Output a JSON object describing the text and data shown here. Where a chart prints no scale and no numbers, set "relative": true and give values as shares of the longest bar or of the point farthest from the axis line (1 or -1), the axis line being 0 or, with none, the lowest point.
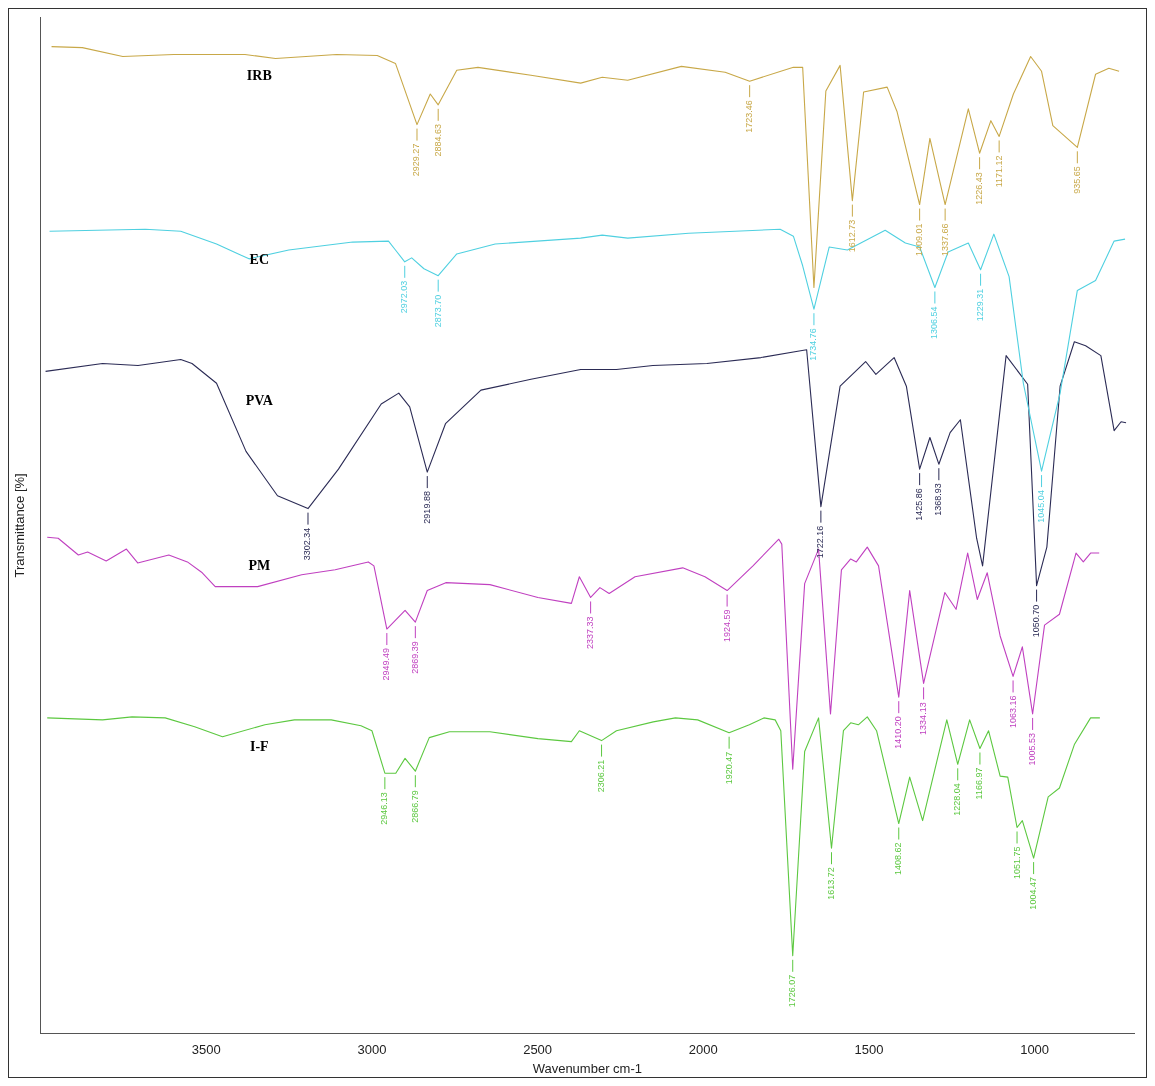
{
  "chart_data": {
    "type": "line",
    "relative": true,
    "xlabel": "Wavenumber cm-1",
    "ylabel": "Transmittance [%]",
    "xlim": [
      4000,
      700
    ],
    "xticks": [
      3500,
      3000,
      2500,
      2000,
      1500,
      1000
    ],
    "grid": false,
    "legend": false,
    "marker": "none",
    "line_style": "solid",
    "series": [
      {
        "name": "IRB",
        "color": "#c8a848",
        "x": [
          3967,
          3874,
          3752,
          3598,
          3383,
          3291,
          3107,
          2984,
          2929,
          2864,
          2824,
          2800,
          2744,
          2680,
          2520,
          2370,
          2305,
          2228,
          2066,
          1934,
          1860,
          1728,
          1700,
          1666,
          1630,
          1587,
          1550,
          1516,
          1445,
          1415,
          1347,
          1316,
          1270,
          1200,
          1166,
          1132,
          1107,
          1064,
          1012,
          979,
          945,
          871,
          816,
          776,
          745
        ],
        "values": [
          1.0,
          0.999,
          0.99,
          0.992,
          0.992,
          0.988,
          0.992,
          0.991,
          0.983,
          0.921,
          0.952,
          0.941,
          0.976,
          0.979,
          0.971,
          0.963,
          0.969,
          0.966,
          0.98,
          0.974,
          0.965,
          0.979,
          0.979,
          0.756,
          0.955,
          0.981,
          0.844,
          0.954,
          0.959,
          0.934,
          0.84,
          0.907,
          0.84,
          0.937,
          0.892,
          0.925,
          0.909,
          0.952,
          0.99,
          0.975,
          0.92,
          0.898,
          0.972,
          0.978,
          0.975
        ]
      },
      {
        "name": "EC",
        "color": "#4fd0e0",
        "x": [
          3973,
          3684,
          3577,
          3469,
          3371,
          3251,
          3058,
          2950,
          2929,
          2901,
          2880,
          2843,
          2800,
          2744,
          2628,
          2370,
          2305,
          2228,
          2044,
          1768,
          1728,
          1700,
          1666,
          1620,
          1565,
          1451,
          1390,
          1347,
          1301,
          1261,
          1200,
          1163,
          1123,
          1077,
          1034,
          979,
          923,
          871,
          816,
          760,
          727
        ],
        "values": [
          0.813,
          0.815,
          0.813,
          0.8,
          0.785,
          0.794,
          0.802,
          0.803,
          0.794,
          0.782,
          0.786,
          0.775,
          0.768,
          0.79,
          0.8,
          0.806,
          0.809,
          0.806,
          0.811,
          0.815,
          0.808,
          0.778,
          0.734,
          0.797,
          0.794,
          0.814,
          0.801,
          0.797,
          0.756,
          0.792,
          0.801,
          0.774,
          0.81,
          0.767,
          0.659,
          0.57,
          0.649,
          0.753,
          0.763,
          0.803,
          0.805
        ]
      },
      {
        "name": "PVA",
        "color": "#2b2b55",
        "x": [
          3985,
          3813,
          3706,
          3577,
          3543,
          3469,
          3380,
          3285,
          3193,
          3101,
          2972,
          2919,
          2886,
          2833,
          2778,
          2671,
          2520,
          2370,
          2262,
          2152,
          1989,
          1826,
          1706,
          1688,
          1645,
          1587,
          1510,
          1479,
          1424,
          1387,
          1347,
          1316,
          1289,
          1255,
          1224,
          1175,
          1157,
          1086,
          1021,
          994,
          963,
          923,
          880,
          846,
          800,
          760,
          739,
          724
        ],
        "values": [
          0.671,
          0.679,
          0.677,
          0.683,
          0.679,
          0.659,
          0.59,
          0.545,
          0.532,
          0.572,
          0.638,
          0.649,
          0.635,
          0.569,
          0.618,
          0.652,
          0.663,
          0.673,
          0.673,
          0.677,
          0.679,
          0.685,
          0.692,
          0.693,
          0.534,
          0.656,
          0.681,
          0.668,
          0.685,
          0.656,
          0.572,
          0.604,
          0.577,
          0.609,
          0.622,
          0.502,
          0.474,
          0.687,
          0.658,
          0.454,
          0.493,
          0.656,
          0.701,
          0.697,
          0.687,
          0.611,
          0.62,
          0.619
        ]
      },
      {
        "name": "PM",
        "color": "#c040c0",
        "x": [
          3980,
          3947,
          3886,
          3858,
          3802,
          3741,
          3707,
          3613,
          3557,
          3512,
          3473,
          3345,
          3212,
          3111,
          3011,
          2994,
          2955,
          2900,
          2869,
          2833,
          2777,
          2644,
          2499,
          2398,
          2374,
          2340,
          2312,
          2284,
          2206,
          2062,
          1995,
          1928,
          1850,
          1772,
          1763,
          1730,
          1694,
          1652,
          1616,
          1583,
          1555,
          1538,
          1505,
          1471,
          1410,
          1377,
          1335,
          1271,
          1237,
          1202,
          1173,
          1143,
          1104,
          1065,
          1037,
          1006,
          970,
          925,
          875,
          853,
          831,
          805
        ],
        "values": [
          0.503,
          0.502,
          0.485,
          0.488,
          0.479,
          0.491,
          0.477,
          0.485,
          0.478,
          0.467,
          0.453,
          0.453,
          0.465,
          0.47,
          0.478,
          0.474,
          0.41,
          0.429,
          0.417,
          0.449,
          0.457,
          0.455,
          0.442,
          0.436,
          0.463,
          0.442,
          0.452,
          0.446,
          0.463,
          0.472,
          0.463,
          0.449,
          0.474,
          0.501,
          0.496,
          0.268,
          0.456,
          0.491,
          0.324,
          0.47,
          0.481,
          0.478,
          0.493,
          0.474,
          0.341,
          0.449,
          0.355,
          0.447,
          0.43,
          0.487,
          0.44,
          0.467,
          0.403,
          0.362,
          0.392,
          0.324,
          0.414,
          0.425,
          0.487,
          0.478,
          0.487,
          0.487
        ]
      },
      {
        "name": "I-F",
        "color": "#5cc840",
        "x": [
          3980,
          3813,
          3724,
          3624,
          3535,
          3451,
          3323,
          3234,
          3123,
          3033,
          3000,
          2961,
          2928,
          2900,
          2869,
          2827,
          2766,
          2644,
          2499,
          2398,
          2374,
          2307,
          2262,
          2151,
          2084,
          2017,
          1922,
          1861,
          1817,
          1783,
          1766,
          1730,
          1694,
          1652,
          1613,
          1577,
          1555,
          1532,
          1505,
          1477,
          1410,
          1377,
          1338,
          1265,
          1232,
          1196,
          1165,
          1139,
          1104,
          1081,
          1053,
          1037,
          1003,
          959,
          925,
          880,
          831,
          803
        ],
        "values": [
          0.32,
          0.318,
          0.321,
          0.32,
          0.311,
          0.301,
          0.313,
          0.318,
          0.318,
          0.312,
          0.307,
          0.264,
          0.264,
          0.279,
          0.266,
          0.3,
          0.306,
          0.306,
          0.299,
          0.296,
          0.307,
          0.297,
          0.307,
          0.316,
          0.32,
          0.318,
          0.305,
          0.313,
          0.32,
          0.318,
          0.307,
          0.079,
          0.286,
          0.32,
          0.188,
          0.307,
          0.315,
          0.313,
          0.321,
          0.307,
          0.213,
          0.26,
          0.216,
          0.318,
          0.273,
          0.318,
          0.289,
          0.307,
          0.261,
          0.26,
          0.209,
          0.216,
          0.178,
          0.24,
          0.249,
          0.293,
          0.32,
          0.32
        ]
      }
    ],
    "annotations": [
      {
        "text": "2929.27",
        "x": 2864,
        "y": 0.921
      },
      {
        "text": "2884.63",
        "x": 2800,
        "y": 0.941
      },
      {
        "text": "1723.46",
        "x": 1860,
        "y": 0.965
      },
      {
        "text": "1612.73",
        "x": 1550,
        "y": 0.844
      },
      {
        "text": "1409.01",
        "x": 1347,
        "y": 0.84
      },
      {
        "text": "1337.66",
        "x": 1270,
        "y": 0.84
      },
      {
        "text": "1226.43",
        "x": 1166,
        "y": 0.892
      },
      {
        "text": "1171.12",
        "x": 1107,
        "y": 0.909
      },
      {
        "text": "935.65",
        "x": 871,
        "y": 0.898
      },
      {
        "text": "2972.03",
        "x": 2901,
        "y": 0.782
      },
      {
        "text": "2873.70",
        "x": 2800,
        "y": 0.768
      },
      {
        "text": "1734.76",
        "x": 1666,
        "y": 0.734
      },
      {
        "text": "1306.54",
        "x": 1301,
        "y": 0.756
      },
      {
        "text": "1229.31",
        "x": 1163,
        "y": 0.774
      },
      {
        "text": "1045.04",
        "x": 979,
        "y": 0.57
      },
      {
        "text": "3302.34",
        "x": 3193,
        "y": 0.532
      },
      {
        "text": "2919.88",
        "x": 2833,
        "y": 0.569
      },
      {
        "text": "1722.16",
        "x": 1645,
        "y": 0.534
      },
      {
        "text": "1425.86",
        "x": 1347,
        "y": 0.572
      },
      {
        "text": "1368.93",
        "x": 1289,
        "y": 0.577
      },
      {
        "text": "1050.70",
        "x": 994,
        "y": 0.454
      },
      {
        "text": "2949.49",
        "x": 2955,
        "y": 0.41
      },
      {
        "text": "2869.39",
        "x": 2869,
        "y": 0.417
      },
      {
        "text": "2337.33",
        "x": 2340,
        "y": 0.442
      },
      {
        "text": "1924.59",
        "x": 1928,
        "y": 0.449
      },
      {
        "text": "1410.20",
        "x": 1410,
        "y": 0.341
      },
      {
        "text": "1334.13",
        "x": 1335,
        "y": 0.355
      },
      {
        "text": "1063.16",
        "x": 1065,
        "y": 0.362
      },
      {
        "text": "1005.53",
        "x": 1006,
        "y": 0.324
      },
      {
        "text": "2946.13",
        "x": 2961,
        "y": 0.264
      },
      {
        "text": "2866.79",
        "x": 2869,
        "y": 0.266
      },
      {
        "text": "2306.21",
        "x": 2307,
        "y": 0.297
      },
      {
        "text": "1920.47",
        "x": 1922,
        "y": 0.305
      },
      {
        "text": "1726.07",
        "x": 1730,
        "y": 0.079
      },
      {
        "text": "1613.72",
        "x": 1613,
        "y": 0.188
      },
      {
        "text": "1408.62",
        "x": 1410,
        "y": 0.213
      },
      {
        "text": "1228.04",
        "x": 1232,
        "y": 0.273
      },
      {
        "text": "1166.97",
        "x": 1165,
        "y": 0.289
      },
      {
        "text": "1051.75",
        "x": 1053,
        "y": 0.209
      },
      {
        "text": "1004.47",
        "x": 1003,
        "y": 0.178
      }
    ]
  }
}
